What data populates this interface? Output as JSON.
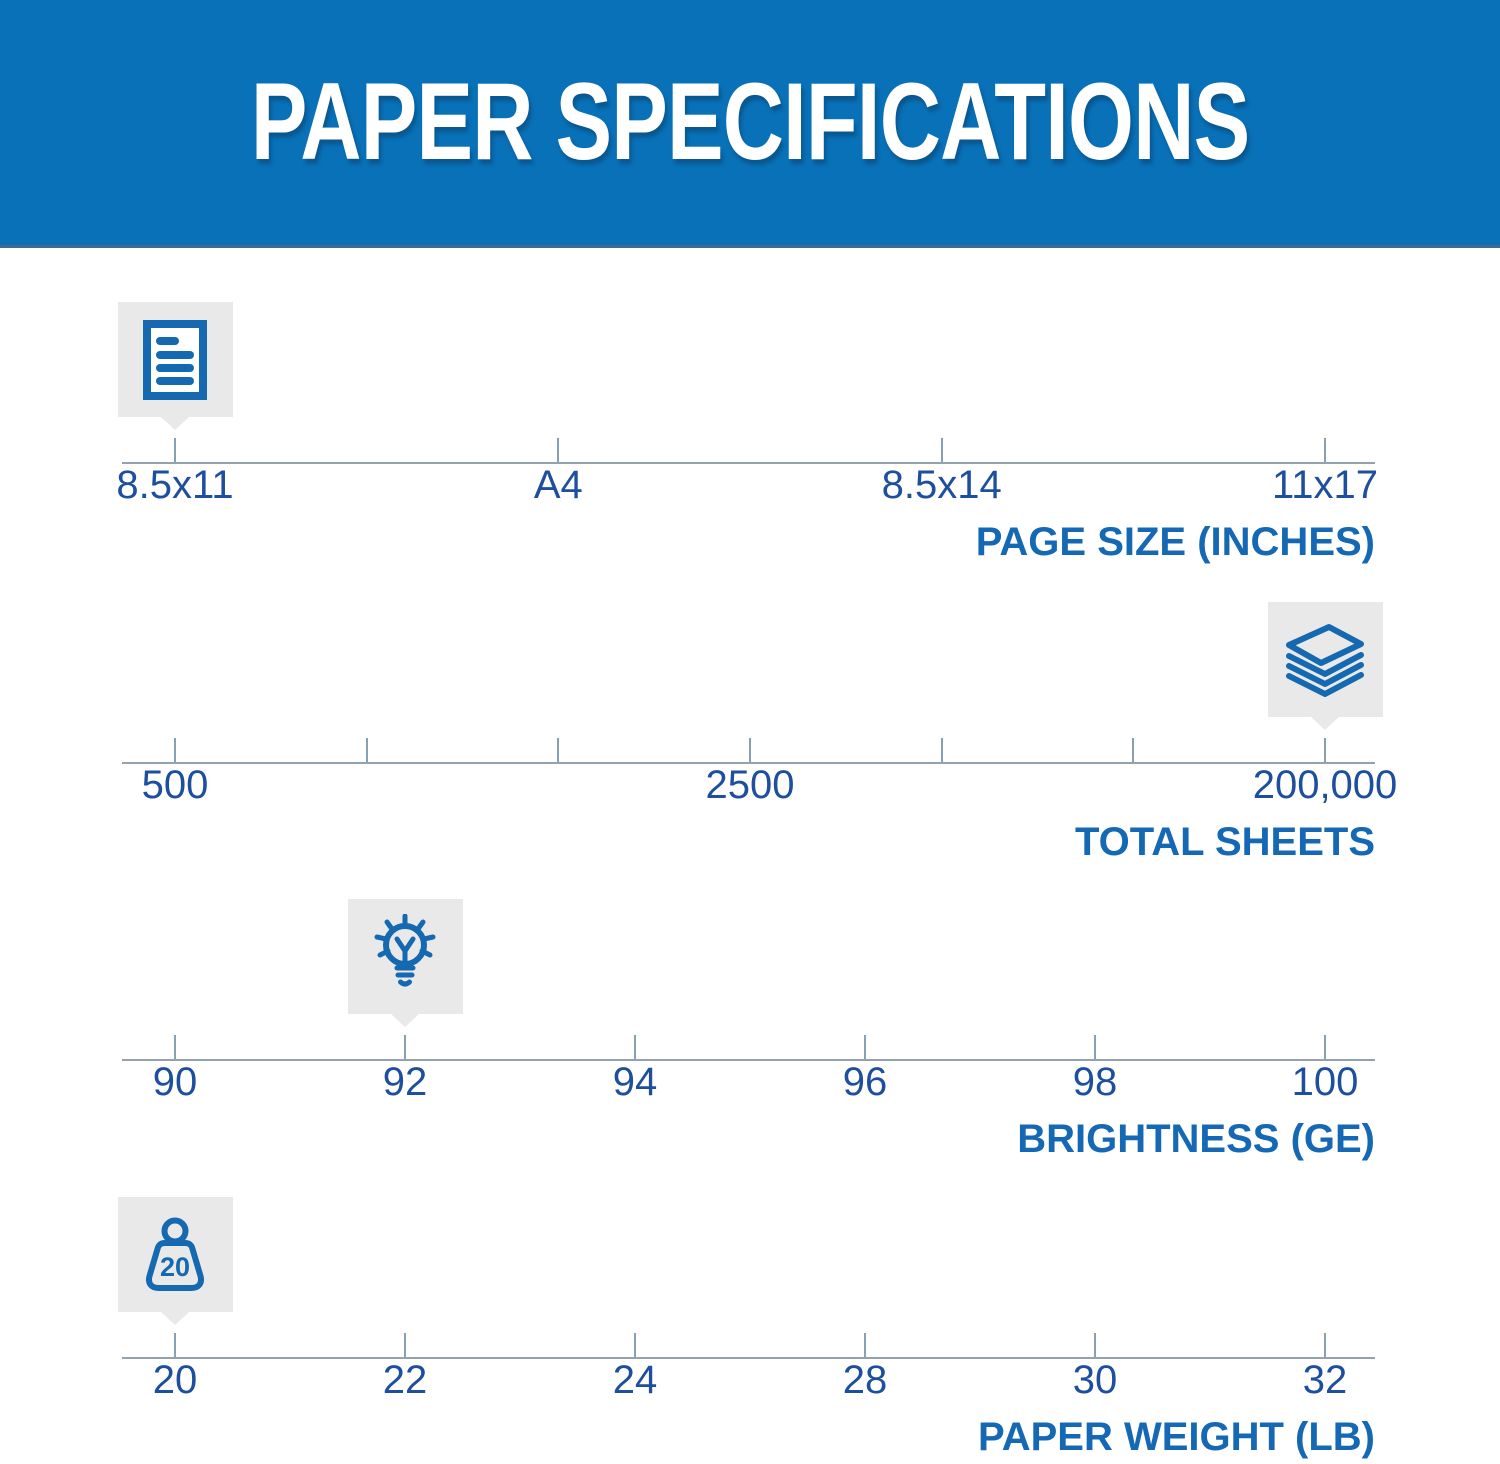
{
  "header": {
    "title": "PAPER SPECIFICATIONS"
  },
  "colors": {
    "background": "#ffffff",
    "banner": "#0871b8",
    "banner_edge": "#3e6a96",
    "title_text": "#ffffff",
    "axis_title": "#1568b3",
    "tick_label": "#1d4f9e",
    "icon": "#1569b0",
    "marker_bg": "#e9e9e9",
    "axis_line": "#93a2ac",
    "tick": "#87a0b2"
  },
  "chart_data": [
    {
      "type": "scale",
      "id": "page-size",
      "title": "PAGE SIZE (INCHES)",
      "icon": "document-icon",
      "tick_count": 4,
      "labels": [
        {
          "tick": 0,
          "text": "8.5x11"
        },
        {
          "tick": 1,
          "text": "A4"
        },
        {
          "tick": 2,
          "text": "8.5x14"
        },
        {
          "tick": 3,
          "text": "11x17"
        }
      ],
      "marker_tick": 0,
      "marker_value": "8.5x11"
    },
    {
      "type": "scale",
      "id": "total-sheets",
      "title": "TOTAL SHEETS",
      "icon": "paper-stack-icon",
      "tick_count": 7,
      "labels": [
        {
          "tick": 0,
          "text": "500"
        },
        {
          "tick": 3,
          "text": "2500"
        },
        {
          "tick": 6,
          "text": "200,000"
        }
      ],
      "marker_tick": 6,
      "marker_value": "200,000"
    },
    {
      "type": "scale",
      "id": "brightness",
      "title": "BRIGHTNESS (GE)",
      "icon": "lightbulb-icon",
      "tick_count": 6,
      "labels": [
        {
          "tick": 0,
          "text": "90"
        },
        {
          "tick": 1,
          "text": "92"
        },
        {
          "tick": 2,
          "text": "94"
        },
        {
          "tick": 3,
          "text": "96"
        },
        {
          "tick": 4,
          "text": "98"
        },
        {
          "tick": 5,
          "text": "100"
        }
      ],
      "marker_tick": 1,
      "marker_value": "92"
    },
    {
      "type": "scale",
      "id": "paper-weight",
      "title": "PAPER WEIGHT (LB)",
      "icon": "weight-icon",
      "icon_text": "20",
      "tick_count": 6,
      "labels": [
        {
          "tick": 0,
          "text": "20"
        },
        {
          "tick": 1,
          "text": "22"
        },
        {
          "tick": 2,
          "text": "24"
        },
        {
          "tick": 3,
          "text": "28"
        },
        {
          "tick": 4,
          "text": "30"
        },
        {
          "tick": 5,
          "text": "32"
        }
      ],
      "marker_tick": 0,
      "marker_value": "20"
    }
  ]
}
